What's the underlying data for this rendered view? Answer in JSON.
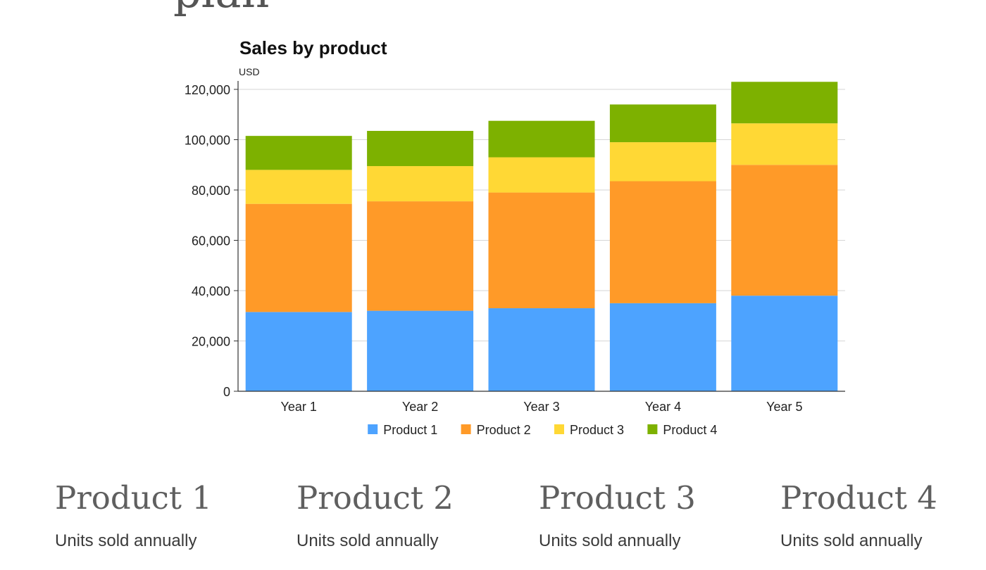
{
  "page": {
    "heading_fragment": "plan"
  },
  "chart_data": {
    "type": "bar",
    "stacked": true,
    "title": "Sales by product",
    "unit_label": "USD",
    "xlabel": "",
    "ylabel": "",
    "ylim": [
      0,
      120000
    ],
    "yticks": [
      0,
      20000,
      40000,
      60000,
      80000,
      100000,
      120000
    ],
    "ytick_labels": [
      "0",
      "20,000",
      "40,000",
      "60,000",
      "80,000",
      "100,000",
      "120,000"
    ],
    "grid": true,
    "legend_position": "bottom",
    "categories": [
      "Year 1",
      "Year 2",
      "Year 3",
      "Year 4",
      "Year 5"
    ],
    "series": [
      {
        "name": "Product 1",
        "color": "#4da3ff",
        "values": [
          31500,
          32000,
          33000,
          35000,
          38000
        ]
      },
      {
        "name": "Product 2",
        "color": "#ff9a28",
        "values": [
          43000,
          43500,
          46000,
          48500,
          52000
        ]
      },
      {
        "name": "Product 3",
        "color": "#ffd835",
        "values": [
          13500,
          14000,
          14000,
          15500,
          16500
        ]
      },
      {
        "name": "Product 4",
        "color": "#7db100",
        "values": [
          13500,
          14000,
          14500,
          15000,
          16500
        ]
      }
    ]
  },
  "cards": [
    {
      "title": "Product 1",
      "subtitle": "Units sold annually"
    },
    {
      "title": "Product 2",
      "subtitle": "Units sold annually"
    },
    {
      "title": "Product 3",
      "subtitle": "Units sold annually"
    },
    {
      "title": "Product 4",
      "subtitle": "Units sold annually"
    }
  ]
}
